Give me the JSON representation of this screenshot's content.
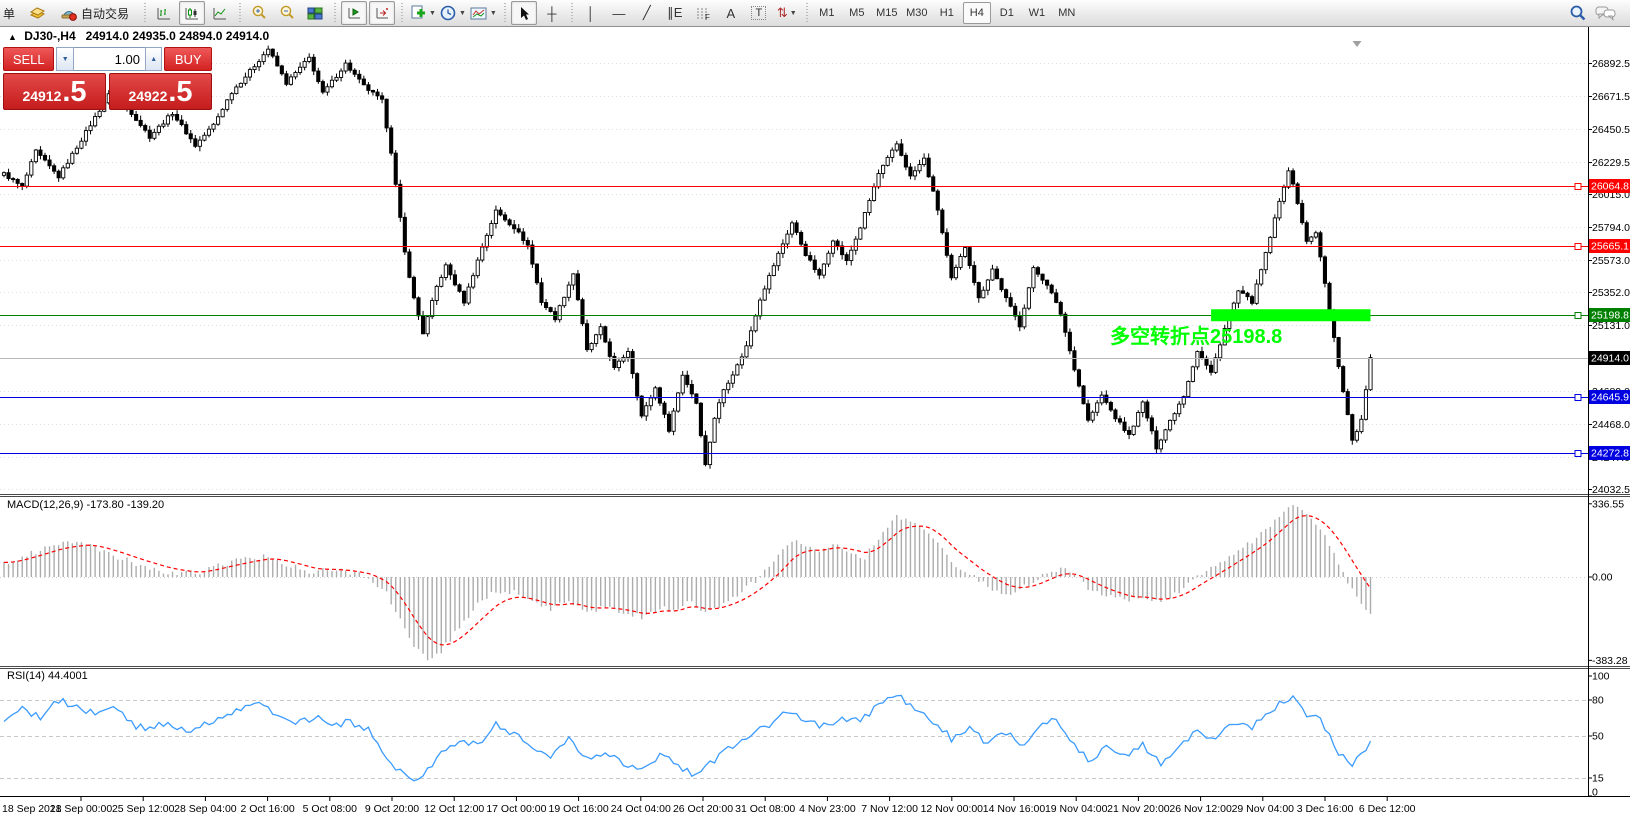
{
  "toolbar": {
    "order_fragment": "单",
    "autotrading_label": "自动交易",
    "timeframes": [
      "M1",
      "M5",
      "M15",
      "M30",
      "H1",
      "H4",
      "D1",
      "W1",
      "MN"
    ],
    "active_timeframe": "H4"
  },
  "icons": {
    "collapse": "▲",
    "spinner_down": "▼",
    "spinner_up": "▲",
    "dropdown_caret": "▼",
    "crosshair_tool": "┼",
    "vertical_line_tool": "│",
    "horizontal_line_tool": "—",
    "trendline_tool": "╱",
    "channel_tool": "∥E",
    "fibonacci_tool": "F",
    "text_tool": "A",
    "label_tool": "T",
    "arrows_tool": "⇅"
  },
  "chart_header": {
    "collapse_arrow": "▲",
    "symbol_period": "DJ30-,H4",
    "ohlc": "24914.0 24935.0 24894.0 24914.0"
  },
  "trade_panel": {
    "sell_label": "SELL",
    "buy_label": "BUY",
    "volume": "1.00",
    "sell_price_small": "24912",
    "sell_price_big": ".5",
    "buy_price_small": "24922",
    "buy_price_big": ".5"
  },
  "annotation": {
    "text": "多空转折点25198.8",
    "color": "#00FF00"
  },
  "indicators": {
    "macd_label": "MACD(12,26,9) -173.80 -139.20",
    "rsi_label": "RSI(14) 44.4001"
  },
  "chart_data": [
    {
      "type": "candlestick",
      "symbol": "DJ30-",
      "period": "H4",
      "ohlc_current": {
        "open": 24914.0,
        "high": 24935.0,
        "low": 24894.0,
        "close": 24914.0
      },
      "y_range": [
        24010,
        27050
      ],
      "grid": true,
      "price_axis_ticks": [
        "26892.5",
        "26671.5",
        "26450.5",
        "26229.5",
        "26015.0",
        "25794.0",
        "25573.0",
        "25352.0",
        "25131.0",
        "24689.0",
        "24468.0",
        "24247.0",
        "24032.5"
      ],
      "x_labels": [
        "18 Sep 2018",
        "21 Sep 00:00",
        "25 Sep 12:00",
        "28 Sep 04:00",
        "2 Oct 16:00",
        "5 Oct 08:00",
        "9 Oct 20:00",
        "12 Oct 12:00",
        "17 Oct 00:00",
        "19 Oct 16:00",
        "24 Oct 04:00",
        "26 Oct 20:00",
        "31 Oct 08:00",
        "4 Nov 23:00",
        "7 Nov 12:00",
        "12 Nov 00:00",
        "14 Nov 16:00",
        "19 Nov 04:00",
        "21 Nov 20:00",
        "26 Nov 12:00",
        "29 Nov 04:00",
        "3 Dec 16:00",
        "6 Dec 12:00"
      ],
      "levels": [
        {
          "price": 26064.8,
          "label": "26064.8",
          "color": "#FF0000",
          "style": "horizontal-line"
        },
        {
          "price": 25665.1,
          "label": "25665.1",
          "color": "#FF0000",
          "style": "horizontal-line"
        },
        {
          "price": 25198.8,
          "label": "25198.8",
          "color": "#008000",
          "style": "horizontal-line"
        },
        {
          "price": 24645.9,
          "label": "24645.9",
          "color": "#0000E0",
          "style": "horizontal-line"
        },
        {
          "price": 24272.8,
          "label": "24272.8",
          "color": "#0000E0",
          "style": "horizontal-line"
        },
        {
          "price": 24914.0,
          "label": "24914.0",
          "color": "#B8B8B8",
          "style": "current-price"
        }
      ],
      "highlight_segment": {
        "price": 25198.8,
        "from_index": 265,
        "to_index": 300,
        "color": "#00FF00",
        "thickness": 12
      },
      "n_candles": 301,
      "close_path_anchors": [
        [
          0,
          26150
        ],
        [
          4,
          26060
        ],
        [
          7,
          26300
        ],
        [
          12,
          26130
        ],
        [
          17,
          26380
        ],
        [
          23,
          26680
        ],
        [
          28,
          26560
        ],
        [
          32,
          26400
        ],
        [
          37,
          26560
        ],
        [
          42,
          26340
        ],
        [
          46,
          26480
        ],
        [
          50,
          26700
        ],
        [
          54,
          26840
        ],
        [
          58,
          26990
        ],
        [
          62,
          26760
        ],
        [
          67,
          26930
        ],
        [
          70,
          26690
        ],
        [
          75,
          26890
        ],
        [
          79,
          26740
        ],
        [
          83,
          26640
        ],
        [
          85,
          26300
        ],
        [
          88,
          25620
        ],
        [
          90,
          25310
        ],
        [
          92,
          25080
        ],
        [
          95,
          25390
        ],
        [
          97,
          25530
        ],
        [
          101,
          25290
        ],
        [
          105,
          25660
        ],
        [
          108,
          25900
        ],
        [
          112,
          25790
        ],
        [
          115,
          25670
        ],
        [
          118,
          25290
        ],
        [
          121,
          25180
        ],
        [
          125,
          25480
        ],
        [
          128,
          24960
        ],
        [
          131,
          25110
        ],
        [
          134,
          24840
        ],
        [
          137,
          24960
        ],
        [
          140,
          24520
        ],
        [
          143,
          24710
        ],
        [
          146,
          24430
        ],
        [
          149,
          24800
        ],
        [
          152,
          24610
        ],
        [
          154,
          24190
        ],
        [
          156,
          24510
        ],
        [
          158,
          24700
        ],
        [
          161,
          24860
        ],
        [
          163,
          24990
        ],
        [
          166,
          25310
        ],
        [
          170,
          25610
        ],
        [
          173,
          25820
        ],
        [
          176,
          25610
        ],
        [
          179,
          25460
        ],
        [
          182,
          25710
        ],
        [
          185,
          25560
        ],
        [
          188,
          25790
        ],
        [
          192,
          26150
        ],
        [
          196,
          26350
        ],
        [
          199,
          26130
        ],
        [
          202,
          26250
        ],
        [
          205,
          25910
        ],
        [
          208,
          25440
        ],
        [
          211,
          25660
        ],
        [
          214,
          25310
        ],
        [
          217,
          25510
        ],
        [
          220,
          25310
        ],
        [
          223,
          25130
        ],
        [
          226,
          25510
        ],
        [
          229,
          25410
        ],
        [
          232,
          25210
        ],
        [
          234,
          24960
        ],
        [
          238,
          24490
        ],
        [
          241,
          24660
        ],
        [
          244,
          24510
        ],
        [
          247,
          24390
        ],
        [
          250,
          24610
        ],
        [
          253,
          24310
        ],
        [
          256,
          24490
        ],
        [
          259,
          24660
        ],
        [
          262,
          24960
        ],
        [
          265,
          24810
        ],
        [
          268,
          25110
        ],
        [
          271,
          25360
        ],
        [
          274,
          25290
        ],
        [
          277,
          25610
        ],
        [
          280,
          25960
        ],
        [
          282,
          26180
        ],
        [
          284,
          25960
        ],
        [
          286,
          25690
        ],
        [
          288,
          25760
        ],
        [
          290,
          25410
        ],
        [
          293,
          24860
        ],
        [
          296,
          24360
        ],
        [
          298,
          24490
        ],
        [
          300,
          24914
        ]
      ]
    },
    {
      "type": "macd-histogram",
      "label": "MACD(12,26,9)",
      "values_current": [
        -173.8,
        -139.2
      ],
      "axis_ticks": [
        "336.55",
        "0.00",
        "-383.28"
      ],
      "y_range": [
        -383.28,
        336.55
      ],
      "histogram_color": "#ACACAC",
      "signal_color": "#FF0000",
      "anchors": [
        [
          0,
          60
        ],
        [
          6,
          110
        ],
        [
          12,
          150
        ],
        [
          18,
          155
        ],
        [
          24,
          100
        ],
        [
          30,
          55
        ],
        [
          36,
          22
        ],
        [
          42,
          14
        ],
        [
          48,
          60
        ],
        [
          54,
          85
        ],
        [
          58,
          95
        ],
        [
          63,
          50
        ],
        [
          68,
          20
        ],
        [
          72,
          35
        ],
        [
          76,
          22
        ],
        [
          80,
          0
        ],
        [
          84,
          -70
        ],
        [
          87,
          -200
        ],
        [
          90,
          -320
        ],
        [
          93,
          -383
        ],
        [
          96,
          -340
        ],
        [
          100,
          -230
        ],
        [
          104,
          -130
        ],
        [
          108,
          -60
        ],
        [
          112,
          -72
        ],
        [
          116,
          -120
        ],
        [
          120,
          -150
        ],
        [
          124,
          -110
        ],
        [
          128,
          -160
        ],
        [
          132,
          -140
        ],
        [
          136,
          -160
        ],
        [
          140,
          -185
        ],
        [
          144,
          -140
        ],
        [
          147,
          -160
        ],
        [
          150,
          -110
        ],
        [
          154,
          -165
        ],
        [
          158,
          -120
        ],
        [
          162,
          -70
        ],
        [
          166,
          0
        ],
        [
          170,
          90
        ],
        [
          173,
          170
        ],
        [
          176,
          150
        ],
        [
          179,
          122
        ],
        [
          182,
          150
        ],
        [
          186,
          112
        ],
        [
          189,
          92
        ],
        [
          192,
          180
        ],
        [
          196,
          280
        ],
        [
          199,
          252
        ],
        [
          202,
          230
        ],
        [
          205,
          150
        ],
        [
          208,
          62
        ],
        [
          211,
          30
        ],
        [
          214,
          -20
        ],
        [
          217,
          -52
        ],
        [
          220,
          -76
        ],
        [
          223,
          -60
        ],
        [
          226,
          -22
        ],
        [
          229,
          20
        ],
        [
          232,
          42
        ],
        [
          234,
          22
        ],
        [
          238,
          -50
        ],
        [
          241,
          -80
        ],
        [
          244,
          -96
        ],
        [
          247,
          -112
        ],
        [
          250,
          -92
        ],
        [
          253,
          -116
        ],
        [
          256,
          -90
        ],
        [
          259,
          -50
        ],
        [
          262,
          10
        ],
        [
          265,
          42
        ],
        [
          268,
          82
        ],
        [
          271,
          122
        ],
        [
          274,
          162
        ],
        [
          277,
          212
        ],
        [
          280,
          282
        ],
        [
          283,
          335
        ],
        [
          286,
          292
        ],
        [
          288,
          242
        ],
        [
          290,
          182
        ],
        [
          293,
          62
        ],
        [
          296,
          -60
        ],
        [
          298,
          -122
        ],
        [
          300,
          -174
        ]
      ]
    },
    {
      "type": "line",
      "label": "RSI(14)",
      "value_current": 44.4001,
      "axis_ticks": [
        "100",
        "80",
        "50",
        "15",
        "0"
      ],
      "levels": [
        80,
        50,
        15
      ],
      "y_range": [
        0,
        100
      ],
      "line_color": "#3B9BFF",
      "anchors": [
        [
          0,
          62
        ],
        [
          4,
          72
        ],
        [
          8,
          66
        ],
        [
          12,
          80
        ],
        [
          16,
          74
        ],
        [
          20,
          68
        ],
        [
          24,
          76
        ],
        [
          28,
          60
        ],
        [
          32,
          55
        ],
        [
          36,
          62
        ],
        [
          40,
          54
        ],
        [
          44,
          60
        ],
        [
          48,
          66
        ],
        [
          52,
          72
        ],
        [
          56,
          76
        ],
        [
          60,
          68
        ],
        [
          64,
          60
        ],
        [
          68,
          66
        ],
        [
          72,
          58
        ],
        [
          76,
          62
        ],
        [
          80,
          55
        ],
        [
          84,
          30
        ],
        [
          88,
          18
        ],
        [
          90,
          14
        ],
        [
          93,
          22
        ],
        [
          96,
          35
        ],
        [
          100,
          48
        ],
        [
          104,
          42
        ],
        [
          108,
          60
        ],
        [
          112,
          52
        ],
        [
          116,
          38
        ],
        [
          120,
          34
        ],
        [
          124,
          48
        ],
        [
          128,
          30
        ],
        [
          132,
          38
        ],
        [
          136,
          28
        ],
        [
          140,
          22
        ],
        [
          144,
          34
        ],
        [
          148,
          26
        ],
        [
          152,
          16
        ],
        [
          156,
          30
        ],
        [
          160,
          42
        ],
        [
          164,
          50
        ],
        [
          168,
          60
        ],
        [
          172,
          72
        ],
        [
          176,
          64
        ],
        [
          180,
          58
        ],
        [
          184,
          66
        ],
        [
          188,
          62
        ],
        [
          192,
          76
        ],
        [
          196,
          84
        ],
        [
          200,
          72
        ],
        [
          204,
          62
        ],
        [
          208,
          48
        ],
        [
          212,
          56
        ],
        [
          216,
          44
        ],
        [
          220,
          52
        ],
        [
          224,
          42
        ],
        [
          228,
          58
        ],
        [
          231,
          64
        ],
        [
          234,
          48
        ],
        [
          238,
          30
        ],
        [
          242,
          40
        ],
        [
          246,
          32
        ],
        [
          250,
          42
        ],
        [
          254,
          26
        ],
        [
          258,
          40
        ],
        [
          262,
          54
        ],
        [
          266,
          48
        ],
        [
          270,
          62
        ],
        [
          274,
          58
        ],
        [
          278,
          70
        ],
        [
          281,
          80
        ],
        [
          283,
          84
        ],
        [
          286,
          66
        ],
        [
          288,
          70
        ],
        [
          290,
          56
        ],
        [
          293,
          36
        ],
        [
          296,
          26
        ],
        [
          298,
          34
        ],
        [
          300,
          44.4
        ]
      ]
    }
  ]
}
